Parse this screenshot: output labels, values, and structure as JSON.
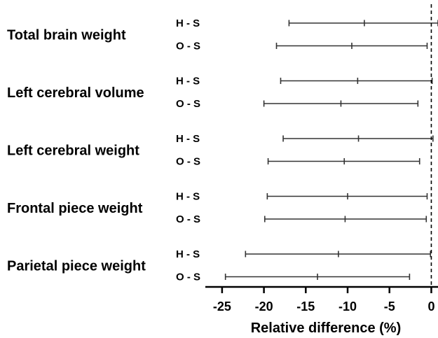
{
  "chart_data": {
    "type": "forest",
    "xlabel": "Relative difference (%)",
    "xlim": [
      -27,
      0.8
    ],
    "xticks": [
      -25,
      -20,
      -15,
      -10,
      -5,
      0
    ],
    "reference_line": 0,
    "groups": [
      {
        "label": "Total brain weight",
        "rows": [
          {
            "comparison": "H - S",
            "estimate": -8,
            "lower": -17,
            "upper": 0.8
          },
          {
            "comparison": "O - S",
            "estimate": -9.5,
            "lower": -18.5,
            "upper": -0.5
          }
        ]
      },
      {
        "label": "Left cerebral volume",
        "rows": [
          {
            "comparison": "H - S",
            "estimate": -8.8,
            "lower": -18,
            "upper": 0.1
          },
          {
            "comparison": "O - S",
            "estimate": -10.8,
            "lower": -20,
            "upper": -1.6
          }
        ]
      },
      {
        "label": "Left cerebral weight",
        "rows": [
          {
            "comparison": "H - S",
            "estimate": -8.7,
            "lower": -17.7,
            "upper": 0.2
          },
          {
            "comparison": "O - S",
            "estimate": -10.4,
            "lower": -19.5,
            "upper": -1.4
          }
        ]
      },
      {
        "label": "Frontal piece weight",
        "rows": [
          {
            "comparison": "H - S",
            "estimate": -10,
            "lower": -19.6,
            "upper": -0.5
          },
          {
            "comparison": "O - S",
            "estimate": -10.3,
            "lower": -19.9,
            "upper": -0.6
          }
        ]
      },
      {
        "label": "Parietal piece weight",
        "rows": [
          {
            "comparison": "H - S",
            "estimate": -11.1,
            "lower": -22.2,
            "upper": -0.1
          },
          {
            "comparison": "O - S",
            "estimate": -13.6,
            "lower": -24.6,
            "upper": -2.6
          }
        ]
      }
    ]
  }
}
